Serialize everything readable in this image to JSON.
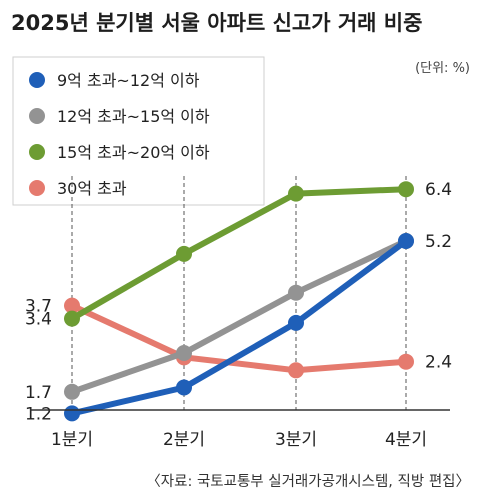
{
  "title": "2025년 분기별 서울 아파트 신고가 거래 비중",
  "unit": "(단위: %)",
  "source": "〈자료: 국토교통부 실거래가공개시스템, 직방 편집〉",
  "chart_data": {
    "type": "line",
    "categories": [
      "1분기",
      "2분기",
      "3분기",
      "4분기"
    ],
    "series": [
      {
        "name": "9억 초과~12억 이하",
        "color": "#1f5fb8",
        "values": [
          1.2,
          1.8,
          3.3,
          5.2
        ],
        "labels": [
          "1.2",
          "",
          "",
          "5.2"
        ]
      },
      {
        "name": "12억 초과~15억 이하",
        "color": "#939393",
        "values": [
          1.7,
          2.6,
          4.0,
          5.2
        ],
        "labels": [
          "1.7",
          "",
          "",
          ""
        ]
      },
      {
        "name": "15억 초과~20억 이하",
        "color": "#6d9c33",
        "values": [
          3.4,
          4.9,
          6.3,
          6.4
        ],
        "labels": [
          "3.4",
          "",
          "",
          "6.4"
        ]
      },
      {
        "name": "30억 초과",
        "color": "#e57a6e",
        "values": [
          3.7,
          2.5,
          2.2,
          2.4
        ],
        "labels": [
          "3.7",
          "",
          "",
          "2.4"
        ]
      }
    ],
    "ylim": [
      1.0,
      6.8
    ],
    "grid": "vertical-dashed"
  }
}
